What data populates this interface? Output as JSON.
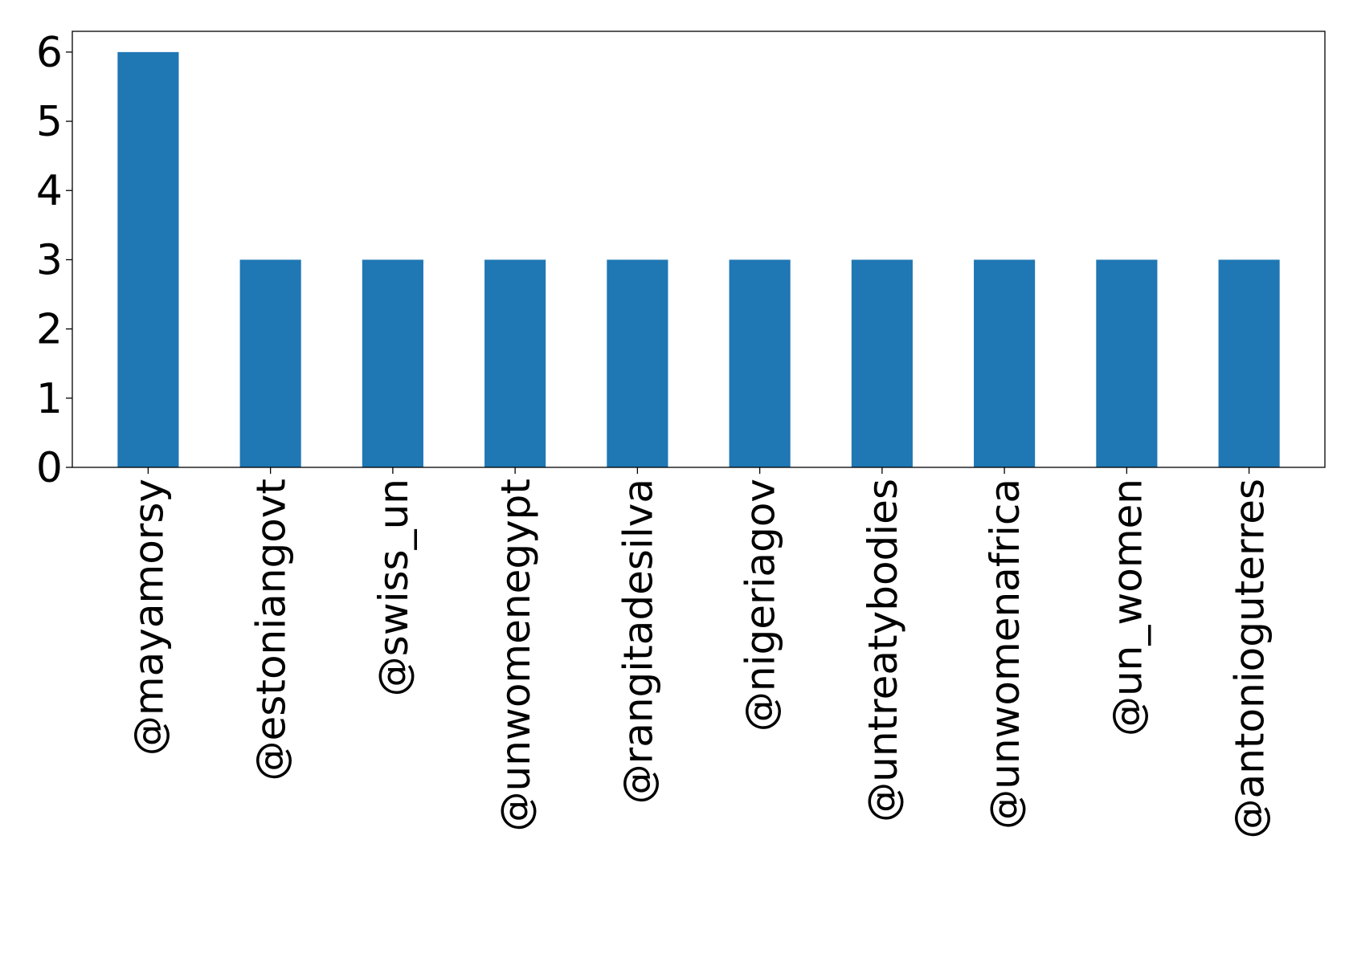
{
  "chart_data": {
    "type": "bar",
    "title": "",
    "xlabel": "",
    "ylabel": "",
    "categories": [
      "@mayamorsy",
      "@estoniangovt",
      "@swiss_un",
      "@unwomenegypt",
      "@rangitadesilva",
      "@nigeriagov",
      "@untreatybodies",
      "@unwomenafrica",
      "@un_women",
      "@antonioguterres"
    ],
    "values": [
      6,
      3,
      3,
      3,
      3,
      3,
      3,
      3,
      3,
      3
    ],
    "ylim": [
      0,
      6.3
    ],
    "yticks": [
      0,
      1,
      2,
      3,
      4,
      5,
      6
    ],
    "grid": false,
    "legend": "none",
    "bar_color": "#1f77b4"
  }
}
